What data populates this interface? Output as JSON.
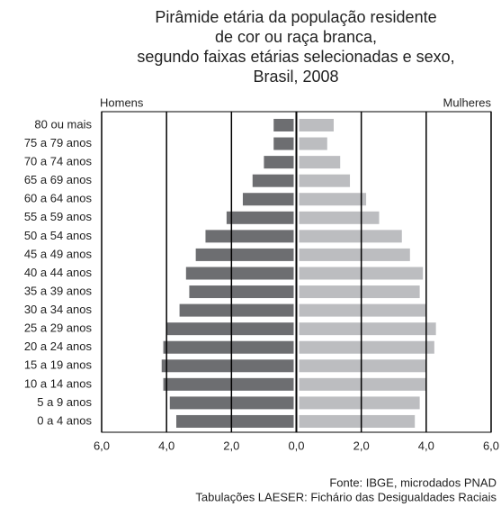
{
  "chart_data": {
    "type": "pyramid",
    "title": [
      "Pirâmide etária da população residente",
      "de cor ou raça branca,",
      "segundo faixas etárias selecionadas e sexo,",
      "Brasil, 2008"
    ],
    "categories": [
      "80 ou mais",
      "75 a 79 anos",
      "70 a 74 anos",
      "65 a 69 anos",
      "60 a 64 anos",
      "55 a 59 anos",
      "50 a 54 anos",
      "45 a 49 anos",
      "40 a 44 anos",
      "35 a 39 anos",
      "30 a 34 anos",
      "25 a 29 anos",
      "20 a 24 anos",
      "15 a 19 anos",
      "10 a 14 anos",
      "5 a 9 anos",
      "0 a 4 anos"
    ],
    "series": [
      {
        "name": "Homens",
        "color": "#6d6e71",
        "side": "left",
        "values": [
          0.7,
          0.7,
          1.0,
          1.35,
          1.65,
          2.15,
          2.8,
          3.1,
          3.4,
          3.3,
          3.6,
          4.0,
          4.1,
          4.15,
          4.1,
          3.9,
          3.7
        ]
      },
      {
        "name": "Mulheres",
        "color": "#bcbdc0",
        "side": "right",
        "values": [
          1.15,
          0.95,
          1.35,
          1.65,
          2.15,
          2.55,
          3.25,
          3.5,
          3.9,
          3.8,
          4.0,
          4.3,
          4.25,
          4.0,
          4.0,
          3.8,
          3.65
        ]
      }
    ],
    "xlim": [
      -6,
      6
    ],
    "xticks": [
      {
        "value": -6,
        "label": "6,0"
      },
      {
        "value": -4,
        "label": "4,0"
      },
      {
        "value": -2,
        "label": "2,0"
      },
      {
        "value": 0,
        "label": "0,0"
      },
      {
        "value": 2,
        "label": "2,0"
      },
      {
        "value": 4,
        "label": "4,0"
      },
      {
        "value": 6,
        "label": "6,0"
      }
    ],
    "grid": true,
    "source": [
      "Fonte: IBGE, microdados PNAD",
      "Tabulações LAESER: Fichário das Desigualdades Raciais"
    ]
  }
}
